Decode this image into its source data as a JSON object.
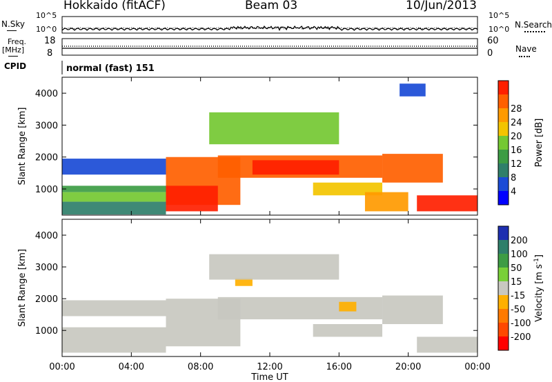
{
  "header": {
    "station": "Hokkaido (fitACF)",
    "beam": "Beam 03",
    "date": "10/Jun/2013"
  },
  "noise_panel": {
    "left_label": "N.Sky",
    "right_label": "N.Search",
    "left_ticks": [
      "10^5",
      "10^0"
    ],
    "right_ticks": [
      "10^5",
      "10^0"
    ]
  },
  "freq_panel": {
    "left_label_1": "Freq.",
    "left_label_2": "[MHz]",
    "right_label": "Nave",
    "left_ticks": [
      "18",
      "8"
    ],
    "right_ticks": [
      "60",
      "0"
    ]
  },
  "cpid_panel": {
    "label": "CPID",
    "text": "normal (fast) 151"
  },
  "chart_data": [
    {
      "type": "heatmap",
      "name": "power",
      "ylabel": "Slant Range [km]",
      "yticks": [
        "1000",
        "2000",
        "3000",
        "4000"
      ],
      "xticks": [
        "00:00",
        "04:00",
        "08:00",
        "12:00",
        "16:00",
        "20:00",
        "00:00"
      ],
      "xlim": [
        0,
        24
      ],
      "ylim": [
        180,
        4500
      ],
      "colorbar_label": "Power [dB]",
      "colorbar_ticks": [
        "4",
        "8",
        "12",
        "16",
        "20",
        "24",
        "28"
      ],
      "colors": [
        "#0000ff",
        "#1a4bd6",
        "#2f7f6a",
        "#3d9c44",
        "#74c832",
        "#f3c400",
        "#ff9a00",
        "#ff6000",
        "#ff2000"
      ],
      "regions": [
        {
          "t0": 0.0,
          "t1": 6.0,
          "r0": 1450,
          "r1": 1950,
          "level": 1
        },
        {
          "t0": 0.0,
          "t1": 6.0,
          "r0": 900,
          "r1": 1100,
          "level": 3
        },
        {
          "t0": 0.0,
          "t1": 6.0,
          "r0": 600,
          "r1": 900,
          "level": 4
        },
        {
          "t0": 0.0,
          "t1": 6.0,
          "r0": 200,
          "r1": 600,
          "level": 2
        },
        {
          "t0": 6.0,
          "t1": 10.3,
          "r0": 500,
          "r1": 2000,
          "level": 7
        },
        {
          "t0": 6.0,
          "t1": 9.0,
          "r0": 300,
          "r1": 1100,
          "level": 8
        },
        {
          "t0": 9.0,
          "t1": 18.5,
          "r0": 1350,
          "r1": 2050,
          "level": 7
        },
        {
          "t0": 11.0,
          "t1": 16.0,
          "r0": 1450,
          "r1": 1900,
          "level": 8
        },
        {
          "t0": 14.5,
          "t1": 18.5,
          "r0": 800,
          "r1": 1200,
          "level": 5
        },
        {
          "t0": 18.5,
          "t1": 22.0,
          "r0": 1200,
          "r1": 2100,
          "level": 7
        },
        {
          "t0": 17.5,
          "t1": 20.0,
          "r0": 300,
          "r1": 900,
          "level": 6
        },
        {
          "t0": 20.5,
          "t1": 24.0,
          "r0": 300,
          "r1": 800,
          "level": 8
        },
        {
          "t0": 8.5,
          "t1": 16.0,
          "r0": 2400,
          "r1": 3400,
          "level": 4
        },
        {
          "t0": 19.5,
          "t1": 21.0,
          "r0": 3900,
          "r1": 4300,
          "level": 1
        }
      ]
    },
    {
      "type": "heatmap",
      "name": "velocity",
      "ylabel": "Slant Range [km]",
      "yticks": [
        "1000",
        "2000",
        "3000",
        "4000"
      ],
      "xticks": [
        "00:00",
        "04:00",
        "08:00",
        "12:00",
        "16:00",
        "20:00",
        "00:00"
      ],
      "xlim": [
        0,
        24
      ],
      "ylim": [
        180,
        4500
      ],
      "colorbar_label": "Velocity [m s",
      "colorbar_label_sup": "-1",
      "colorbar_label_end": "]",
      "colorbar_ticks": [
        "200",
        "100",
        "50",
        "15",
        "-15",
        "-50",
        "-100",
        "-200"
      ],
      "colors": [
        "#1e2fb0",
        "#2f7f6a",
        "#3d9c44",
        "#79d038",
        "#c8c8c0",
        "#ffb000",
        "#ff7a00",
        "#ff4800",
        "#ff0000"
      ],
      "regions": [
        {
          "t0": 0.0,
          "t1": 6.0,
          "r0": 1450,
          "r1": 1950,
          "level": 4
        },
        {
          "t0": 0.0,
          "t1": 6.0,
          "r0": 300,
          "r1": 1100,
          "level": 4
        },
        {
          "t0": 6.0,
          "t1": 10.3,
          "r0": 500,
          "r1": 2000,
          "level": 4
        },
        {
          "t0": 9.0,
          "t1": 18.5,
          "r0": 1350,
          "r1": 2050,
          "level": 4
        },
        {
          "t0": 14.5,
          "t1": 18.5,
          "r0": 800,
          "r1": 1200,
          "level": 4
        },
        {
          "t0": 18.5,
          "t1": 22.0,
          "r0": 1200,
          "r1": 2100,
          "level": 4
        },
        {
          "t0": 20.5,
          "t1": 24.0,
          "r0": 300,
          "r1": 800,
          "level": 4
        },
        {
          "t0": 10.0,
          "t1": 11.0,
          "r0": 2400,
          "r1": 2650,
          "level": 5
        },
        {
          "t0": 16.0,
          "t1": 17.0,
          "r0": 1600,
          "r1": 1900,
          "level": 5
        },
        {
          "t0": 8.5,
          "t1": 16.0,
          "r0": 2600,
          "r1": 3400,
          "level": 4
        }
      ]
    }
  ],
  "x_axis_label": "Time UT"
}
